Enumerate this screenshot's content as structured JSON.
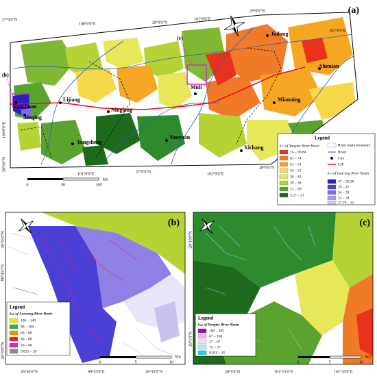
{
  "panel_a": {
    "label": "(a)",
    "inset_markers": [
      "(b)",
      "(c)"
    ],
    "coordinates": [
      "27°0'0\"N",
      "100°0'0\"E",
      "28°0'0\"N",
      "101°0'0\"E",
      "29°0'0\"N",
      "102°0'0\"E",
      "100°0'0\"E",
      "26°0'0\"N",
      "101°0'0\"E",
      "27°0'0\"N",
      "102°0'0\"E",
      "28°0'0\"N"
    ],
    "cities": [
      "Jiulong",
      "Shimian",
      "Muli",
      "Mianning",
      "Lijiang",
      "Jianchuan",
      "Heqing",
      "Ninglang",
      "Yanyuan",
      "Yongsheng",
      "Xichang"
    ],
    "scale": [
      "0",
      "50",
      "100",
      "km"
    ],
    "legend": {
      "title": "Legend",
      "yangtze_title": "kₛₙ of Yangtze River Basin",
      "yangtze_classes": [
        "74 – 90.84",
        "61 – 74",
        "51 – 61",
        "43 – 51",
        "36 – 43",
        "29 – 36",
        "21 – 29",
        "5.27 – 21"
      ],
      "symbols": [
        "River basin boundary",
        "River",
        "City",
        "LJF"
      ],
      "lancang_title": "kₛₙ of Lancang River Basin",
      "lancang_classes": [
        "47 – 50.30",
        "39 – 47",
        "34 – 39",
        "31 – 34",
        "27.79 – 31"
      ]
    }
  },
  "panel_b": {
    "label": "(b)",
    "coordinates": [
      "26°35'0\"N",
      "99°45'0\"E",
      "26°30'0\"N",
      "26°30'0\"N",
      "99°55'0\"E",
      "26°35'0\"N"
    ],
    "scale": [
      "0",
      "5",
      "10",
      "km"
    ],
    "legend": {
      "title": "Legend",
      "subtitle": "kₛₙ of Lancang River Basin",
      "classes": [
        "100 – 140",
        "80 – 100",
        "60 – 80",
        "40 – 60",
        "20 – 40",
        "0.025 – 20"
      ]
    }
  },
  "panel_c": {
    "label": "(c)",
    "coordinates": [
      "28°10'0\"N",
      "28°5'0\"N",
      "28°5'0\"N",
      "101°15'0\"E",
      "101°20'0\"E"
    ],
    "scale": [
      "0",
      "5",
      "10",
      "km"
    ],
    "legend": {
      "title": "Legend",
      "subtitle": "kₛₙ of Yangtze River Basin",
      "classes": [
        "100 – 105",
        "67 – 100",
        "37 – 67",
        "15 – 37",
        "0.014 – 15"
      ]
    }
  }
}
